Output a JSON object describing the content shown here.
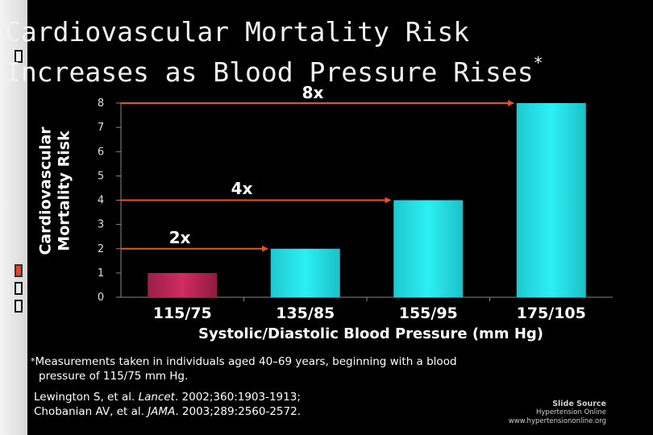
{
  "title": {
    "line1": "Cardiovascular Mortality Risk",
    "line2": "Increases as Blood Pressure Rises",
    "asterisk": "*"
  },
  "chart_data": {
    "type": "bar",
    "categories": [
      "115/75",
      "135/85",
      "155/95",
      "175/105"
    ],
    "values": [
      1,
      2,
      4,
      8
    ],
    "ylabel": "Cardiovascular Mortality Risk",
    "xlabel": "Systolic/Diastolic Blood Pressure (mm Hg)",
    "ylim": [
      0,
      8
    ],
    "yticks": [
      0,
      1,
      2,
      3,
      4,
      5,
      6,
      7,
      8
    ],
    "annotations": [
      {
        "label": "2x",
        "value": 2
      },
      {
        "label": "4x",
        "value": 4
      },
      {
        "label": "8x",
        "value": 8
      }
    ],
    "colors": {
      "first_bar": "#c0285a",
      "bars": "#26e0e8",
      "arrows": "#e8542a"
    }
  },
  "footnote": {
    "star": "*",
    "line1": "Measurements taken in individuals aged 40–69 years, beginning with a blood",
    "line2": "pressure of 115/75 mm Hg."
  },
  "references": {
    "ref1_authors": "Lewington S, et al. ",
    "ref1_journal": "Lancet",
    "ref1_rest": ". 2002;360:1903-1913;",
    "ref2_authors": "Chobanian AV, et al. ",
    "ref2_journal": "JAMA",
    "ref2_rest": ". 2003;289:2560-2572."
  },
  "source": {
    "label": "Slide Source",
    "name": "Hypertension Online",
    "url": "www.hypertensiononline.org"
  }
}
